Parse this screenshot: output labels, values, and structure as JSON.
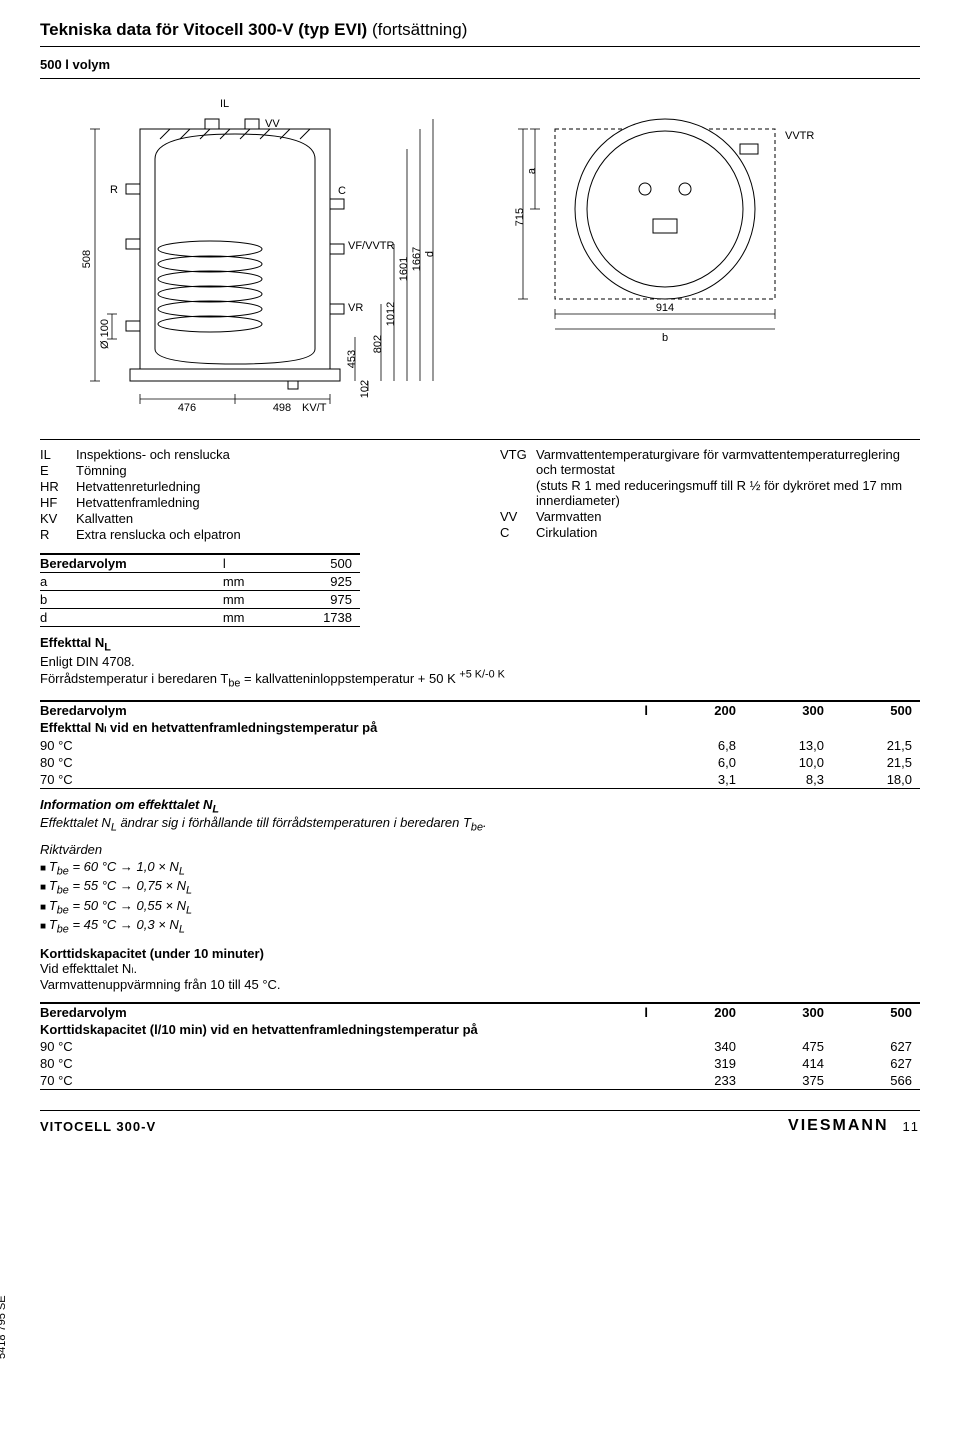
{
  "title_main": "Tekniska data för Vitocell 300-V (typ EVI)",
  "title_cont": "(fortsättning)",
  "subtitle": "500 l volym",
  "diagram": {
    "labels": {
      "IL": "IL",
      "VV": "VV",
      "C": "C",
      "R": "R",
      "VF_VVTR": "VF/VVTR",
      "VR": "VR",
      "KV_T": "KV/T",
      "VVTR": "VVTR",
      "a": "a",
      "b": "b",
      "d": "d"
    },
    "dims": {
      "508": "508",
      "O100": "Ø 100",
      "476": "476",
      "498": "498",
      "453": "453",
      "102": "102",
      "802": "802",
      "1012": "1012",
      "1601": "1601",
      "1667": "1667",
      "715": "715",
      "914": "914"
    },
    "stroke": "#000000",
    "hatch": "#000000",
    "bg": "#ffffff"
  },
  "legend_left": [
    {
      "k": "IL",
      "v": "Inspektions- och renslucka"
    },
    {
      "k": "E",
      "v": "Tömning"
    },
    {
      "k": "HR",
      "v": "Hetvattenreturledning"
    },
    {
      "k": "HF",
      "v": "Hetvattenframledning"
    },
    {
      "k": "KV",
      "v": "Kallvatten"
    },
    {
      "k": "R",
      "v": "Extra renslucka och elpatron"
    }
  ],
  "legend_right": [
    {
      "k": "VTG",
      "v": "Varmvattentemperaturgivare för varmvattentemperaturreglering och termostat"
    },
    {
      "k": "",
      "v": "(stuts R 1 med reduceringsmuff till R ½ för dykröret med 17 mm innerdiameter)"
    },
    {
      "k": "VV",
      "v": "Varmvatten"
    },
    {
      "k": "C",
      "v": "Cirkulation"
    }
  ],
  "table_dims": {
    "rows": [
      [
        "Beredarvolym",
        "l",
        "500"
      ],
      [
        "a",
        "mm",
        "925"
      ],
      [
        "b",
        "mm",
        "975"
      ],
      [
        "d",
        "mm",
        "1738"
      ]
    ]
  },
  "effekttal_heading": "Effekttal N",
  "effekttal_sub": "L",
  "effekttal_line1": "Enligt DIN 4708.",
  "effekttal_line2_a": "Förrådstemperatur i beredaren T",
  "effekttal_line2_sub": "be",
  "effekttal_line2_b": " = kallvatteninloppstemperatur + 50 K ",
  "effekttal_line2_sup": "+5 K/-0 K",
  "table_effekttal": {
    "header": [
      "Beredarvolym",
      "l",
      "200",
      "300",
      "500"
    ],
    "subhead": "Effekttal Nₗ vid en hetvattenframledningstemperatur på",
    "rows": [
      [
        "90 °C",
        "6,8",
        "13,0",
        "21,5"
      ],
      [
        "80 °C",
        "6,0",
        "10,0",
        "21,5"
      ],
      [
        "70 °C",
        "3,1",
        "8,3",
        "18,0"
      ]
    ]
  },
  "info_heading": "Information om effekttalet N",
  "info_body_a": "Effekttalet N",
  "info_body_b": " ändrar sig i förhållande till förrådstemperaturen i beredaren T",
  "info_body_c": ".",
  "riktv_heading": "Riktvärden",
  "riktv": [
    "T_be = 60 °C → 1,0 × N_L",
    "T_be = 55 °C → 0,75 × N_L",
    "T_be = 50 °C → 0,55 × N_L",
    "T_be = 45 °C → 0,3 × N_L"
  ],
  "kort_heading": "Korttidskapacitet (under 10 minuter)",
  "kort_line1": "Vid effekttalet Nₗ.",
  "kort_line2": "Varmvattenuppvärmning från 10 till 45 °C.",
  "table_kort": {
    "header": [
      "Beredarvolym",
      "l",
      "200",
      "300",
      "500"
    ],
    "subhead": "Korttidskapacitet (l/10 min) vid en hetvattenframledningstemperatur på",
    "rows": [
      [
        "90 °C",
        "340",
        "475",
        "627"
      ],
      [
        "80 °C",
        "319",
        "414",
        "627"
      ],
      [
        "70 °C",
        "233",
        "375",
        "566"
      ]
    ]
  },
  "footer": {
    "product": "VITOCELL 300-V",
    "brand": "VIESMANN",
    "page": "11",
    "sidecode": "5418 795 SE"
  }
}
